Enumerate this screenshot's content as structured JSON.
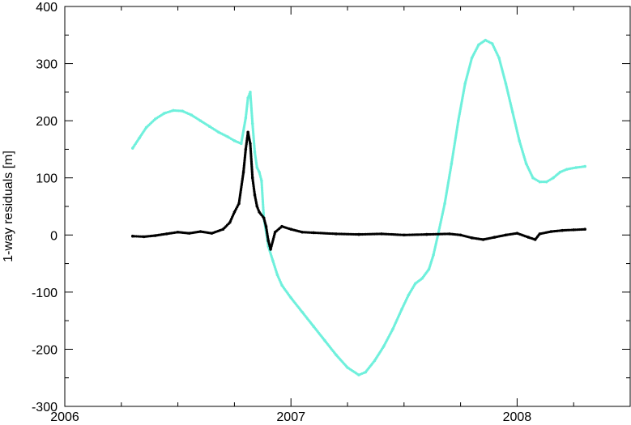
{
  "chart_data": {
    "type": "scatter",
    "title": "",
    "xlabel": "",
    "ylabel": "1-way residuals [m]",
    "xlim": [
      2006,
      2008.5
    ],
    "ylim": [
      -300,
      400
    ],
    "xticks": [
      2006,
      2007,
      2008
    ],
    "xtick_labels": [
      "2006",
      "2007",
      "2008"
    ],
    "yticks": [
      -300,
      -200,
      -100,
      0,
      100,
      200,
      300,
      400
    ],
    "ytick_labels": [
      "-300",
      "-200",
      "-100",
      "0",
      "100",
      "200",
      "300",
      "400"
    ],
    "grid": false,
    "legend": "none",
    "series": [
      {
        "color": "#6ff0dc",
        "points": [
          [
            2006.3,
            152
          ],
          [
            2006.33,
            170
          ],
          [
            2006.36,
            188
          ],
          [
            2006.4,
            203
          ],
          [
            2006.44,
            213
          ],
          [
            2006.48,
            218
          ],
          [
            2006.52,
            217
          ],
          [
            2006.56,
            210
          ],
          [
            2006.6,
            200
          ],
          [
            2006.64,
            190
          ],
          [
            2006.68,
            180
          ],
          [
            2006.72,
            172
          ],
          [
            2006.75,
            165
          ],
          [
            2006.78,
            160
          ],
          [
            2006.8,
            205
          ],
          [
            2006.81,
            240
          ],
          [
            2006.82,
            250
          ],
          [
            2006.83,
            195
          ],
          [
            2006.84,
            145
          ],
          [
            2006.85,
            118
          ],
          [
            2006.86,
            110
          ],
          [
            2006.87,
            95
          ],
          [
            2006.88,
            30
          ],
          [
            2006.9,
            -20
          ],
          [
            2006.92,
            -45
          ],
          [
            2006.94,
            -70
          ],
          [
            2006.96,
            -88
          ],
          [
            2007.0,
            -110
          ],
          [
            2007.05,
            -135
          ],
          [
            2007.1,
            -160
          ],
          [
            2007.15,
            -185
          ],
          [
            2007.2,
            -210
          ],
          [
            2007.25,
            -232
          ],
          [
            2007.3,
            -245
          ],
          [
            2007.33,
            -240
          ],
          [
            2007.37,
            -220
          ],
          [
            2007.41,
            -195
          ],
          [
            2007.45,
            -165
          ],
          [
            2007.49,
            -130
          ],
          [
            2007.52,
            -105
          ],
          [
            2007.55,
            -85
          ],
          [
            2007.58,
            -76
          ],
          [
            2007.61,
            -60
          ],
          [
            2007.63,
            -35
          ],
          [
            2007.65,
            0
          ],
          [
            2007.68,
            55
          ],
          [
            2007.71,
            125
          ],
          [
            2007.74,
            200
          ],
          [
            2007.77,
            265
          ],
          [
            2007.8,
            310
          ],
          [
            2007.83,
            333
          ],
          [
            2007.86,
            341
          ],
          [
            2007.89,
            335
          ],
          [
            2007.92,
            310
          ],
          [
            2007.95,
            265
          ],
          [
            2007.98,
            215
          ],
          [
            2008.01,
            165
          ],
          [
            2008.04,
            125
          ],
          [
            2008.07,
            100
          ],
          [
            2008.1,
            93
          ],
          [
            2008.13,
            93
          ],
          [
            2008.16,
            100
          ],
          [
            2008.19,
            110
          ],
          [
            2008.22,
            115
          ],
          [
            2008.26,
            118
          ],
          [
            2008.3,
            120
          ]
        ]
      },
      {
        "color": "#000000",
        "points": [
          [
            2006.3,
            -2
          ],
          [
            2006.35,
            -3
          ],
          [
            2006.4,
            -1
          ],
          [
            2006.45,
            2
          ],
          [
            2006.5,
            5
          ],
          [
            2006.55,
            3
          ],
          [
            2006.6,
            6
          ],
          [
            2006.65,
            3
          ],
          [
            2006.7,
            10
          ],
          [
            2006.73,
            22
          ],
          [
            2006.75,
            40
          ],
          [
            2006.77,
            55
          ],
          [
            2006.79,
            110
          ],
          [
            2006.8,
            150
          ],
          [
            2006.81,
            180
          ],
          [
            2006.82,
            160
          ],
          [
            2006.83,
            100
          ],
          [
            2006.84,
            70
          ],
          [
            2006.85,
            50
          ],
          [
            2006.86,
            40
          ],
          [
            2006.88,
            30
          ],
          [
            2006.89,
            15
          ],
          [
            2006.9,
            -10
          ],
          [
            2006.91,
            -25
          ],
          [
            2006.93,
            5
          ],
          [
            2006.96,
            15
          ],
          [
            2007.0,
            10
          ],
          [
            2007.05,
            5
          ],
          [
            2007.1,
            4
          ],
          [
            2007.2,
            2
          ],
          [
            2007.3,
            1
          ],
          [
            2007.4,
            2
          ],
          [
            2007.5,
            0
          ],
          [
            2007.6,
            1
          ],
          [
            2007.7,
            2
          ],
          [
            2007.75,
            0
          ],
          [
            2007.8,
            -5
          ],
          [
            2007.85,
            -8
          ],
          [
            2007.9,
            -4
          ],
          [
            2007.95,
            0
          ],
          [
            2008.0,
            3
          ],
          [
            2008.05,
            -4
          ],
          [
            2008.08,
            -8
          ],
          [
            2008.1,
            2
          ],
          [
            2008.15,
            6
          ],
          [
            2008.2,
            8
          ],
          [
            2008.25,
            9
          ],
          [
            2008.3,
            10
          ]
        ]
      }
    ]
  }
}
